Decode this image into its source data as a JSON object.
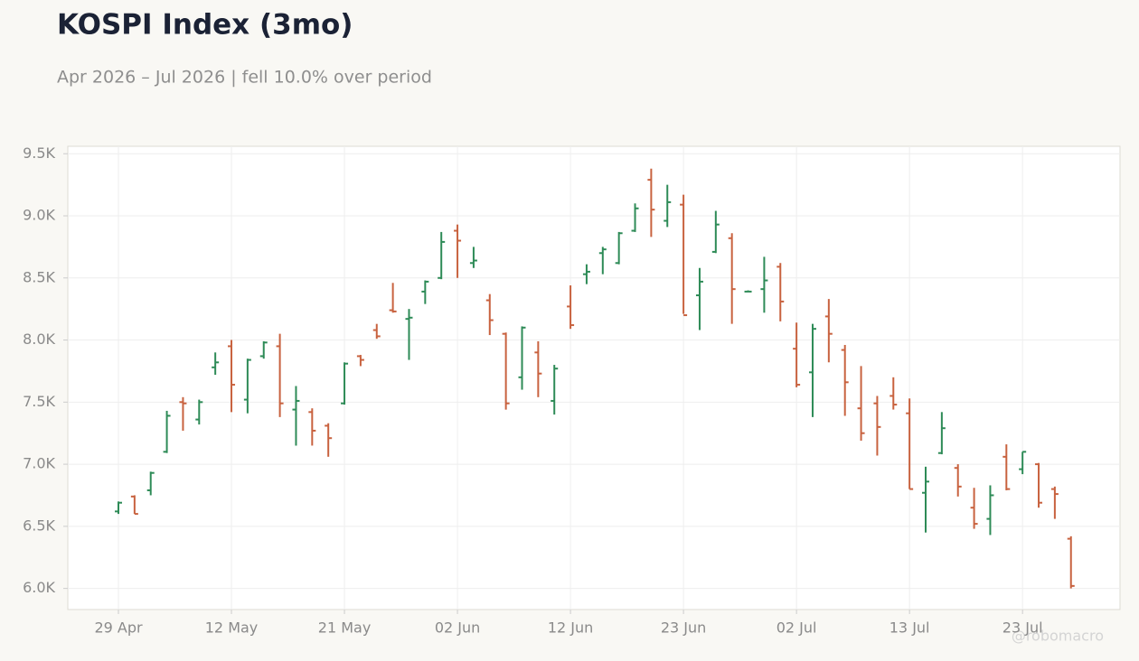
{
  "chart_data": {
    "type": "ohlc",
    "title": "KOSPI Index (3mo)",
    "subtitle": "Apr 2026 – Jul 2026 | fell 10.0% over period",
    "watermark": "@robomacro",
    "categories": [
      "29 Apr",
      null,
      null,
      null,
      null,
      null,
      null,
      "12 May",
      null,
      null,
      null,
      null,
      null,
      null,
      "21 May",
      null,
      null,
      null,
      null,
      null,
      null,
      "02 Jun",
      null,
      null,
      null,
      null,
      null,
      null,
      "12 Jun",
      null,
      null,
      null,
      null,
      null,
      null,
      "23 Jun",
      null,
      null,
      null,
      null,
      null,
      null,
      "02 Jul",
      null,
      null,
      null,
      null,
      null,
      null,
      "13 Jul",
      null,
      null,
      null,
      null,
      null,
      null,
      "23 Jul",
      null,
      null,
      null
    ],
    "open": [
      6620,
      6740,
      6790,
      7100,
      7500,
      7360,
      7780,
      7950,
      7520,
      7870,
      7950,
      7440,
      7420,
      7310,
      7490,
      7870,
      8080,
      8240,
      8170,
      8390,
      8500,
      8880,
      8620,
      8320,
      8050,
      7700,
      7900,
      7510,
      8270,
      8530,
      8700,
      8620,
      8880,
      9290,
      8960,
      9090,
      8360,
      8710,
      8820,
      8390,
      8410,
      8590,
      7930,
      7740,
      8190,
      7920,
      7450,
      7490,
      7550,
      7410,
      6770,
      7090,
      6970,
      6650,
      6560,
      7060,
      6960,
      7000,
      6800,
      6400
    ],
    "high": [
      6700,
      6750,
      6940,
      7430,
      7540,
      7520,
      7900,
      8000,
      7850,
      7990,
      8050,
      7630,
      7450,
      7330,
      7820,
      7880,
      8130,
      8460,
      8250,
      8480,
      8870,
      8930,
      8750,
      8370,
      8060,
      8110,
      7990,
      7800,
      8440,
      8610,
      8750,
      8870,
      9100,
      9380,
      9250,
      9170,
      8580,
      9040,
      8860,
      8400,
      8670,
      8620,
      8140,
      8130,
      8330,
      7960,
      7790,
      7550,
      7700,
      7530,
      6980,
      7420,
      7000,
      6810,
      6830,
      7160,
      7100,
      7010,
      6820,
      6420
    ],
    "low": [
      6600,
      6600,
      6750,
      7090,
      7270,
      7320,
      7720,
      7420,
      7410,
      7850,
      7380,
      7150,
      7150,
      7060,
      7480,
      7790,
      8010,
      8220,
      7840,
      8290,
      8490,
      8500,
      8580,
      8040,
      7440,
      7600,
      7540,
      7400,
      8090,
      8450,
      8530,
      8610,
      8870,
      8830,
      8910,
      8210,
      8080,
      8700,
      8130,
      8390,
      8220,
      8150,
      7620,
      7380,
      7820,
      7390,
      7190,
      7070,
      7440,
      6800,
      6450,
      7080,
      6740,
      6480,
      6430,
      6790,
      6920,
      6650,
      6560,
      6000
    ],
    "close": [
      6690,
      6600,
      6930,
      7390,
      7490,
      7500,
      7820,
      7640,
      7840,
      7980,
      7490,
      7510,
      7270,
      7210,
      7810,
      7840,
      8030,
      8230,
      8180,
      8470,
      8790,
      8800,
      8640,
      8160,
      7490,
      8100,
      7730,
      7770,
      8120,
      8550,
      8730,
      8860,
      9060,
      9050,
      9110,
      8200,
      8470,
      8930,
      8410,
      8390,
      8480,
      8310,
      7640,
      8090,
      8050,
      7660,
      7250,
      7300,
      7480,
      6800,
      6860,
      7290,
      6820,
      6520,
      6750,
      6800,
      7100,
      6690,
      6760,
      6020
    ],
    "up_color": "#2e8b57",
    "down_color": "#c8623f",
    "ylim": [
      5830,
      9560
    ],
    "yticks": [
      {
        "value": 6000,
        "label": "6.0K"
      },
      {
        "value": 6500,
        "label": "6.5K"
      },
      {
        "value": 7000,
        "label": "7.0K"
      },
      {
        "value": 7500,
        "label": "7.5K"
      },
      {
        "value": 8000,
        "label": "8.0K"
      },
      {
        "value": 8500,
        "label": "8.5K"
      },
      {
        "value": 9000,
        "label": "9.0K"
      },
      {
        "value": 9500,
        "label": "9.5K"
      }
    ],
    "grid": true
  }
}
